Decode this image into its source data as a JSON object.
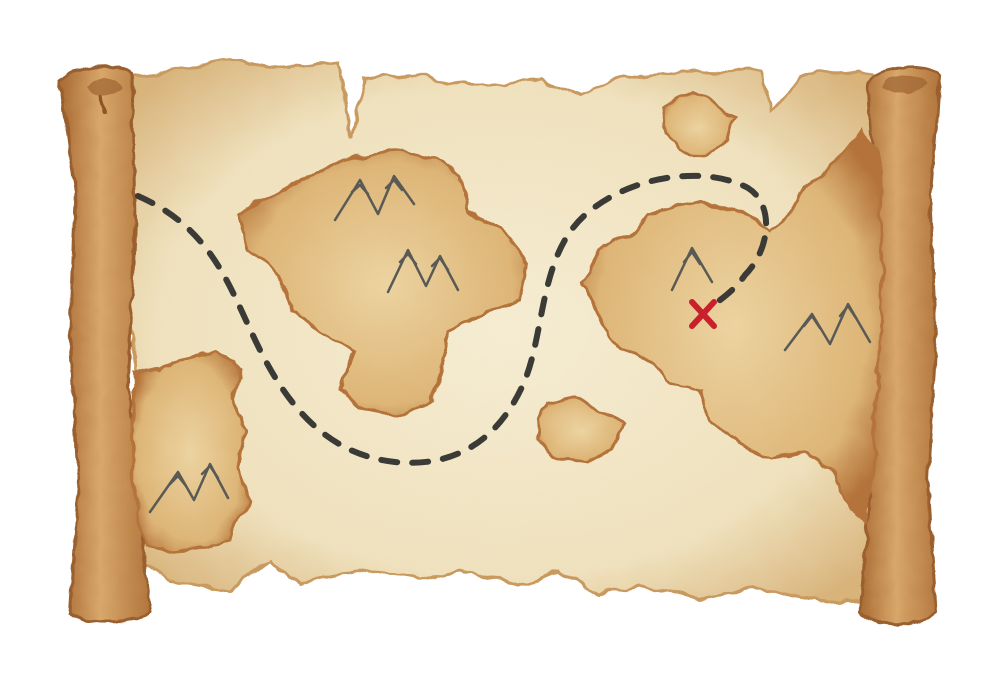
{
  "illustration": {
    "subject": "treasure-map-scroll",
    "colors": {
      "background": "#ffffff",
      "parchment": "#f1e6c8",
      "parchment_edge": "#d9b47a",
      "land": "#e6c48a",
      "land_edge": "#b9773a",
      "roller": "#c98f52",
      "roller_shadow": "#a86a33",
      "path": "#3a3a36",
      "mountain": "#5a5a55",
      "x_mark": "#c8202c"
    },
    "islands": [
      "left-island",
      "center-island",
      "small-island-top",
      "small-island-bottom",
      "right-landmass"
    ],
    "mountains": [
      "mountains-center-top",
      "mountains-center",
      "mountains-left",
      "mountains-right-1",
      "mountains-right-2"
    ],
    "markers": [
      "treasure-x-mark"
    ]
  }
}
